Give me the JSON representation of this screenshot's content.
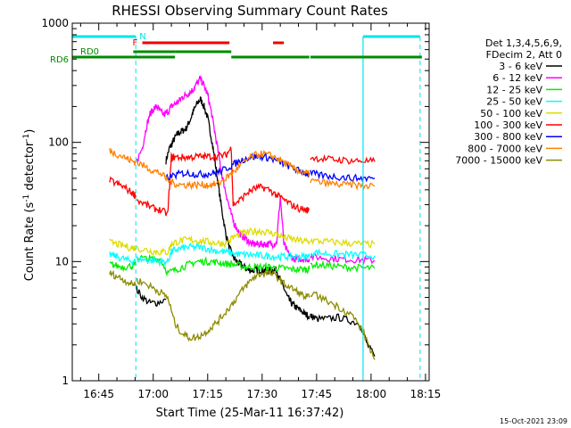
{
  "chart_data": {
    "type": "line",
    "title": "RHESSI Observing Summary Count Rates",
    "xlabel": "Start Time (25-Mar-11 16:37:42)",
    "ylabel_main": "Count Rate (s",
    "ylabel_sup1": "-1",
    "ylabel_mid": " detector",
    "ylabel_sup2": "-1",
    "ylabel_end": ")",
    "ylog": true,
    "ylim": [
      1,
      1000
    ],
    "xlim_minutes": [
      37.7,
      136
    ],
    "xticks": [
      {
        "m": 45,
        "label": "16:45"
      },
      {
        "m": 60,
        "label": "17:00"
      },
      {
        "m": 75,
        "label": "17:15"
      },
      {
        "m": 90,
        "label": "17:30"
      },
      {
        "m": 105,
        "label": "17:45"
      },
      {
        "m": 120,
        "label": "18:00"
      },
      {
        "m": 135,
        "label": "18:15"
      }
    ],
    "yticks": [
      {
        "v": 1,
        "label": "1"
      },
      {
        "v": 10,
        "label": "10"
      },
      {
        "v": 100,
        "label": "100"
      },
      {
        "v": 1000,
        "label": "1000"
      }
    ],
    "legend_header": [
      "Det 1,3,4,5,6,9,",
      "FDecim 2, Att 0"
    ],
    "timestamp": "15-Oct-2021 23:09",
    "flags": {
      "N_label": "N",
      "F_label": "F",
      "RD0_label": "RD0",
      "RD6_label": "RD6",
      "night_color": "#00e5ee",
      "flare_color": "#ee0000",
      "rd_color": "#008b00",
      "night_intervals": [
        [
          37.7,
          55.2
        ],
        [
          117.8,
          133.5
        ]
      ],
      "night_dashes": [
        55.2,
        133.5
      ],
      "night_solid": [
        117.8
      ],
      "flare_intervals": [
        [
          57,
          81
        ],
        [
          93,
          96
        ]
      ],
      "rd0_intervals": [
        [
          54.5,
          66
        ],
        [
          66,
          81.5
        ]
      ],
      "rd6_intervals": [
        [
          37.7,
          66
        ],
        [
          81.5,
          103
        ],
        [
          103.3,
          134
        ]
      ]
    },
    "series": [
      {
        "name": "3 - 6 keV",
        "color": "#000000",
        "x": [
          63.5,
          64.5,
          65,
          66,
          67,
          68,
          69,
          70,
          71,
          72,
          73,
          74,
          75,
          76,
          77,
          78,
          79,
          80,
          81,
          82,
          83,
          84,
          85,
          86,
          87,
          88,
          89,
          90,
          91,
          92,
          93,
          94,
          95,
          96,
          97,
          98,
          99,
          100,
          101,
          102,
          103
        ],
        "y": [
          70,
          90,
          95,
          110,
          120,
          125,
          130,
          150,
          180,
          210,
          230,
          200,
          160,
          110,
          70,
          42,
          26,
          17,
          13,
          11,
          10,
          9.5,
          9,
          8.5,
          8.5,
          8.5,
          8.5,
          8.5,
          8.5,
          8.5,
          8.5,
          8.5,
          7,
          6,
          5,
          4.5,
          4.2,
          4,
          3.8,
          3.6,
          3.5
        ],
        "seg": 2
      },
      {
        "name": "3 - 6 keV",
        "color": "#000000",
        "x": [
          55.2,
          57,
          59,
          61,
          63.5
        ],
        "y": [
          6,
          5,
          4.5,
          4.5,
          4.8
        ],
        "seg": 1
      },
      {
        "name": "3 - 6 keV",
        "color": "#000000",
        "x": [
          103.3,
          105,
          108,
          111,
          114,
          117,
          119,
          121
        ],
        "y": [
          3.5,
          3.3,
          3.3,
          3.4,
          3.2,
          3,
          2,
          1.6
        ],
        "seg": 3
      },
      {
        "name": "6 - 12 keV",
        "color": "#ff00ff",
        "x": [
          55.5,
          57,
          58,
          59,
          60,
          61,
          62,
          63,
          64,
          65,
          66,
          67,
          68,
          69,
          70,
          71,
          72,
          73,
          74,
          75,
          76,
          77,
          78,
          79,
          80,
          81,
          82,
          83,
          84,
          85,
          86,
          87,
          88,
          89,
          90,
          91,
          92,
          93,
          94,
          95,
          96,
          97,
          98,
          99,
          100,
          101,
          102,
          103
        ],
        "y": [
          70,
          90,
          130,
          170,
          190,
          200,
          180,
          170,
          180,
          200,
          210,
          220,
          240,
          250,
          260,
          280,
          310,
          340,
          300,
          250,
          180,
          120,
          80,
          52,
          38,
          28,
          22,
          19,
          17,
          16,
          15,
          14,
          14,
          14,
          14,
          14,
          14,
          14,
          14.5,
          35,
          14,
          12,
          11,
          10.5,
          10.5,
          10.5,
          10.5,
          10.5
        ],
        "seg": 2
      },
      {
        "name": "6 - 12 keV",
        "color": "#ff00ff",
        "x": [
          103.3,
          106,
          109,
          112,
          115,
          118,
          121
        ],
        "y": [
          11,
          10.8,
          10.6,
          10.5,
          10.4,
          10.3,
          10.2
        ],
        "seg": 3
      },
      {
        "name": "12 - 25 keV",
        "color": "#00ee00",
        "x": [
          55.5,
          58,
          60,
          62,
          64,
          66,
          68,
          70,
          72,
          74,
          76,
          78,
          80,
          82,
          84,
          86,
          88,
          90,
          92,
          94,
          96,
          98,
          100,
          102,
          103
        ],
        "y": [
          11,
          10.5,
          10.5,
          10.5,
          8,
          8.5,
          9,
          9.5,
          10,
          10,
          10,
          9.8,
          9.6,
          9.5,
          9.2,
          9.0,
          9.0,
          9.0,
          9.0,
          8.8,
          8.8,
          8.6,
          8.6,
          8.6,
          8.6
        ],
        "seg": 2
      },
      {
        "name": "12 - 25 keV",
        "color": "#00ee00",
        "x": [
          103.3,
          106,
          109,
          112,
          115,
          118,
          121
        ],
        "y": [
          9.5,
          9.3,
          9.2,
          9,
          8.9,
          8.8,
          8.8
        ],
        "seg": 3
      },
      {
        "name": "12 - 25 keV",
        "color": "#00ee00",
        "x": [
          48,
          50,
          52,
          54,
          55.2
        ],
        "y": [
          9.5,
          9.2,
          9.0,
          9.2,
          9.3
        ],
        "seg": 1
      },
      {
        "name": "25 - 50 keV",
        "color": "#00ffff",
        "x": [
          48,
          50,
          52,
          54,
          55.2
        ],
        "y": [
          11.5,
          11,
          10.5,
          10,
          10.2
        ],
        "seg": 1
      },
      {
        "name": "25 - 50 keV",
        "color": "#00ffff",
        "x": [
          55.5,
          58,
          60,
          62,
          64,
          65,
          66,
          68,
          70,
          72,
          74,
          76,
          78,
          80,
          82,
          84,
          86,
          88,
          90,
          92,
          94,
          96,
          98,
          100,
          102,
          103
        ],
        "y": [
          10.5,
          10.3,
          10.2,
          10,
          10,
          12,
          12.5,
          13,
          13.2,
          13.2,
          13,
          12.6,
          12.2,
          12,
          11.7,
          11.5,
          11.4,
          11.3,
          11.2,
          11.1,
          11,
          11,
          11,
          11,
          11,
          11
        ],
        "seg": 2
      },
      {
        "name": "25 - 50 keV",
        "color": "#00ffff",
        "x": [
          103.3,
          106,
          109,
          112,
          115,
          118,
          121
        ],
        "y": [
          12,
          11.8,
          11.6,
          11.5,
          11.4,
          11.3,
          11.2
        ],
        "seg": 3
      },
      {
        "name": "50 - 100 keV",
        "color": "#dddd00",
        "x": [
          48,
          50,
          52,
          54,
          55.2
        ],
        "y": [
          14.5,
          14,
          13.5,
          13,
          13
        ],
        "seg": 1
      },
      {
        "name": "50 - 100 keV",
        "color": "#dddd00",
        "x": [
          55.5,
          58,
          60,
          62,
          64,
          65,
          66,
          68,
          70,
          72,
          74,
          76,
          78,
          80,
          82,
          84,
          86,
          88,
          90,
          92,
          94,
          96,
          98,
          100,
          102,
          103
        ],
        "y": [
          13,
          12.5,
          12.2,
          12,
          12,
          14,
          14.5,
          15,
          15.2,
          15,
          14.8,
          14.5,
          14.3,
          14.2,
          16,
          17,
          17.5,
          18,
          18,
          17.5,
          17,
          16,
          15.5,
          15,
          14.8,
          14.6
        ],
        "seg": 2
      },
      {
        "name": "50 - 100 keV",
        "color": "#dddd00",
        "x": [
          103.3,
          106,
          109,
          112,
          115,
          118,
          121
        ],
        "y": [
          15,
          14.8,
          14.6,
          14.4,
          14.2,
          14,
          14
        ],
        "seg": 3
      },
      {
        "name": "100 - 300 keV",
        "color": "#ff0000",
        "x": [
          48,
          50,
          52,
          54,
          55.2
        ],
        "y": [
          48,
          45,
          42,
          38,
          36
        ],
        "seg": 1
      },
      {
        "name": "100 - 300 keV",
        "color": "#ff0000",
        "x": [
          55.5,
          58,
          60,
          62,
          64,
          65,
          66,
          68,
          70,
          72,
          74,
          76,
          78,
          80,
          81.5,
          82,
          84,
          86,
          88,
          90,
          92,
          94,
          96,
          98,
          100,
          102,
          103
        ],
        "y": [
          33,
          30,
          28,
          27,
          25,
          75,
          75,
          75,
          75,
          76,
          76,
          76,
          77,
          78,
          90,
          30,
          33,
          38,
          41,
          42,
          40,
          36,
          33,
          30,
          28,
          27,
          27
        ],
        "seg": 2
      },
      {
        "name": "100 - 300 keV",
        "color": "#ff0000",
        "x": [
          103.3,
          106,
          109,
          112,
          115,
          118,
          121
        ],
        "y": [
          75,
          73,
          72,
          71,
          70,
          70,
          69
        ],
        "seg": 3
      },
      {
        "name": "300 - 800 keV",
        "color": "#0000ff",
        "x": [
          63.5,
          66,
          68,
          70,
          72,
          74,
          76,
          78,
          80,
          82,
          84,
          86,
          88,
          90,
          92,
          94,
          96,
          98,
          100,
          102,
          103
        ],
        "y": [
          50,
          53,
          55,
          55,
          54,
          54,
          55,
          56,
          60,
          65,
          70,
          74,
          76,
          76,
          74,
          70,
          66,
          62,
          58,
          55,
          54
        ],
        "seg": 2
      },
      {
        "name": "300 - 800 keV",
        "color": "#0000ff",
        "x": [
          103.3,
          106,
          109,
          112,
          115,
          118,
          121
        ],
        "y": [
          55,
          53,
          52,
          51,
          50,
          50,
          50
        ],
        "seg": 3
      },
      {
        "name": "800 - 7000 keV",
        "color": "#ff8000",
        "x": [
          48,
          50,
          52,
          54,
          55.2
        ],
        "y": [
          85,
          80,
          75,
          70,
          68
        ],
        "seg": 1
      },
      {
        "name": "800 - 7000 keV",
        "color": "#ff8000",
        "x": [
          55.5,
          58,
          60,
          62,
          64,
          66,
          68,
          70,
          72,
          74,
          76,
          78,
          80,
          82,
          84,
          86,
          88,
          90,
          92,
          94,
          96,
          98,
          100,
          102,
          103
        ],
        "y": [
          68,
          62,
          58,
          55,
          48,
          45,
          44,
          44,
          44,
          44,
          44,
          45,
          50,
          56,
          64,
          72,
          78,
          80,
          78,
          74,
          68,
          62,
          58,
          55,
          54
        ],
        "seg": 2
      },
      {
        "name": "800 - 7000 keV",
        "color": "#ff8000",
        "x": [
          103.3,
          106,
          109,
          112,
          115,
          118,
          121
        ],
        "y": [
          48,
          46,
          45,
          44,
          44,
          43,
          43
        ],
        "seg": 3
      },
      {
        "name": "7000 - 15000 keV",
        "color": "#8b8b00",
        "x": [
          48,
          50,
          52,
          54,
          55.2
        ],
        "y": [
          8,
          7.5,
          7,
          6.5,
          6.5
        ],
        "seg": 1
      },
      {
        "name": "7000 - 15000 keV",
        "color": "#8b8b00",
        "x": [
          55.5,
          58,
          60,
          62,
          64,
          66,
          68,
          70,
          72,
          74,
          76,
          78,
          80,
          82,
          84,
          86,
          88,
          90,
          92,
          94,
          96,
          98,
          100,
          102,
          103
        ],
        "y": [
          7,
          6.5,
          6,
          5.5,
          5,
          3,
          2.5,
          2.3,
          2.3,
          2.5,
          2.8,
          3.2,
          3.8,
          4.5,
          5.5,
          6.5,
          7.5,
          8,
          8,
          7.5,
          6.5,
          6,
          5.5,
          5,
          5
        ],
        "seg": 2
      },
      {
        "name": "7000 - 15000 keV",
        "color": "#8b8b00",
        "x": [
          103.3,
          106,
          109,
          112,
          115,
          118,
          121
        ],
        "y": [
          5.5,
          5,
          4.5,
          4,
          3.5,
          2.5,
          1.5
        ],
        "seg": 3
      }
    ],
    "legend": [
      {
        "name": "3 - 6 keV",
        "color": "#000000"
      },
      {
        "name": "6 - 12 keV",
        "color": "#ff00ff"
      },
      {
        "name": "12 - 25 keV",
        "color": "#00ee00"
      },
      {
        "name": "25 - 50 keV",
        "color": "#00ffff"
      },
      {
        "name": "50 - 100 keV",
        "color": "#dddd00"
      },
      {
        "name": "100 - 300 keV",
        "color": "#ff0000"
      },
      {
        "name": "300 - 800 keV",
        "color": "#0000ff"
      },
      {
        "name": "800 - 7000 keV",
        "color": "#ff8000"
      },
      {
        "name": "7000 - 15000 keV",
        "color": "#8b8b00"
      }
    ]
  }
}
